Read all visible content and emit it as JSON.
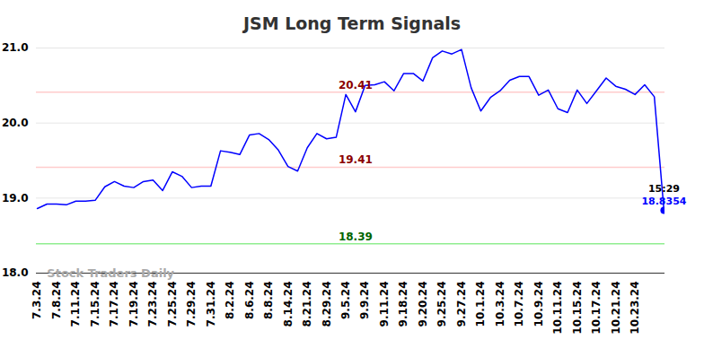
{
  "chart_data": {
    "type": "line",
    "title": "JSM Long Term Signals",
    "color": "#0000ff",
    "grid": true,
    "watermark": "Stock Traders Daily",
    "categories": [
      "7.3.24",
      null,
      "7.8.24",
      null,
      "7.11.24",
      null,
      "7.15.24",
      null,
      "7.17.24",
      null,
      "7.19.24",
      null,
      "7.23.24",
      null,
      "7.25.24",
      null,
      "7.29.24",
      null,
      "7.31.24",
      null,
      "8.2.24",
      null,
      "8.6.24",
      null,
      "8.8.24",
      null,
      "8.14.24",
      null,
      "8.21.24",
      null,
      "8.29.24",
      null,
      "9.5.24",
      null,
      "9.9.24",
      null,
      "9.11.24",
      null,
      "9.18.24",
      null,
      "9.20.24",
      null,
      "9.25.24",
      null,
      "9.27.24",
      null,
      "10.1.24",
      null,
      "10.3.24",
      null,
      "10.7.24",
      null,
      "10.9.24",
      null,
      "10.11.24",
      null,
      "10.15.24",
      null,
      "10.17.24",
      null,
      "10.21.24",
      null,
      "10.23.24",
      null,
      null,
      null
    ],
    "values": [
      18.86,
      18.92,
      18.92,
      18.91,
      18.96,
      18.96,
      18.97,
      19.15,
      19.22,
      19.16,
      19.14,
      19.22,
      19.24,
      19.1,
      19.35,
      19.29,
      19.14,
      19.16,
      19.16,
      19.63,
      19.61,
      19.58,
      19.84,
      19.86,
      19.78,
      19.64,
      19.42,
      19.36,
      19.67,
      19.86,
      19.79,
      19.81,
      20.38,
      20.15,
      20.5,
      20.51,
      20.55,
      20.43,
      20.66,
      20.66,
      20.56,
      20.87,
      20.96,
      20.92,
      20.98,
      20.47,
      20.16,
      20.34,
      20.43,
      20.57,
      20.62,
      20.62,
      20.37,
      20.44,
      20.19,
      20.14,
      20.44,
      20.26,
      20.43,
      20.6,
      20.49,
      20.45,
      20.38,
      20.51,
      20.35,
      18.8354
    ],
    "ylim": [
      18,
      21
    ],
    "yticks": [
      18,
      19,
      20,
      21
    ],
    "annotations": [
      {
        "value": 20.41,
        "color": "#8b0000",
        "line_color": "#ffcccc"
      },
      {
        "value": 19.41,
        "color": "#8b0000",
        "line_color": "#ffcccc"
      },
      {
        "value": 18.39,
        "color": "#006400",
        "line_color": "#90ee90"
      }
    ],
    "last_point": {
      "label": "15:29",
      "value": 18.8354,
      "color": "#0000ff"
    }
  }
}
